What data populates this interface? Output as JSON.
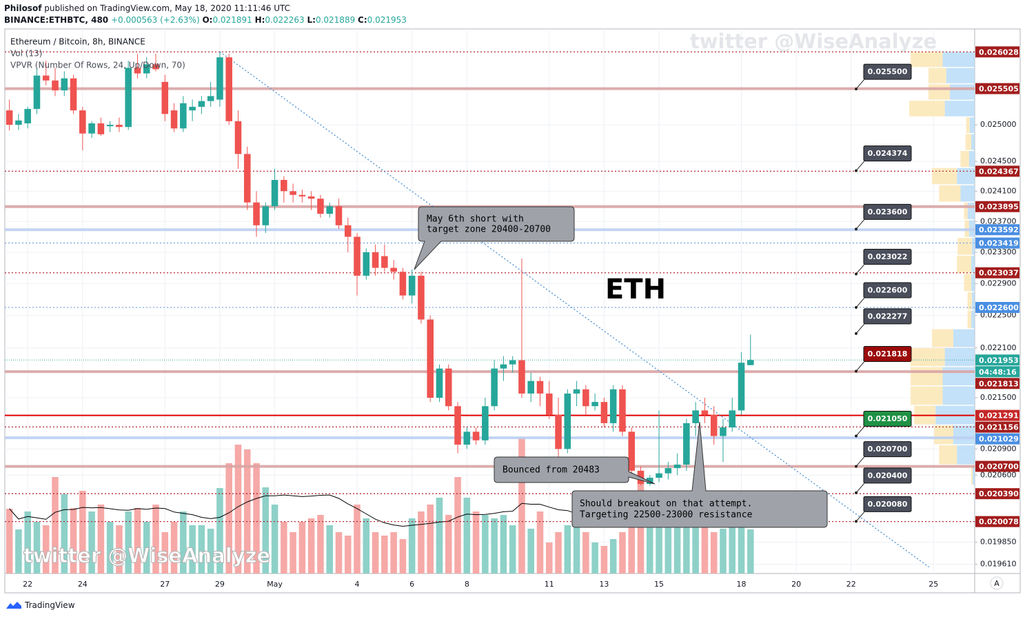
{
  "header": {
    "publisher": "Philosof",
    "published": "published on TradingView.com, May 18, 2020 11:11:46 UTC",
    "symbol": "BINANCE:ETHBTC, 480",
    "change": "+0.000563 (+2.63%)",
    "ohlc": [
      {
        "key": "O:",
        "value": "0.021891"
      },
      {
        "key": "H:",
        "value": "0.022263"
      },
      {
        "key": "L:",
        "value": "0.021889"
      },
      {
        "key": "C:",
        "value": "0.021953"
      }
    ]
  },
  "footer": "TradingView",
  "chart_data": {
    "type": "candlestick",
    "title": "Ethereum / Bitcoin, 8h, BINANCE",
    "indicators": [
      "Vol (13)",
      "VPVR (Number Of Rows, 24, Up/Down, 70)"
    ],
    "volume_ma_length": 13,
    "watermark": "twitter @WiseAnalyze",
    "label": "ETH",
    "scale_button": "A",
    "log": true,
    "grid": true,
    "up_color": "#26a69a",
    "down_color": "#ef5350",
    "volume_up_color": "#8ed1c8",
    "volume_down_color": "#f6a9a7",
    "vpvr_up_color": "#b9dcf7",
    "vpvr_down_color": "#fbe6b4",
    "xlim": [
      -0.5,
      105.5
    ],
    "xticks": [
      {
        "value": 2,
        "label": "22"
      },
      {
        "value": 8,
        "label": "24"
      },
      {
        "value": 17,
        "label": "27"
      },
      {
        "value": 23,
        "label": "29"
      },
      {
        "value": 29,
        "label": "May"
      },
      {
        "value": 38,
        "label": "4"
      },
      {
        "value": 44,
        "label": "6"
      },
      {
        "value": 50,
        "label": "8"
      },
      {
        "value": 59,
        "label": "11"
      },
      {
        "value": 65,
        "label": "13"
      },
      {
        "value": 71,
        "label": "15"
      },
      {
        "value": 80,
        "label": "18"
      },
      {
        "value": 86,
        "label": "20"
      },
      {
        "value": 92,
        "label": "22"
      },
      {
        "value": 101,
        "label": "25"
      }
    ],
    "ylim": [
      0.01951,
      0.02636
    ],
    "yticks": [
      {
        "value": 0.025,
        "label": "0.025000"
      },
      {
        "value": 0.0245,
        "label": "0.024500"
      },
      {
        "value": 0.0241,
        "label": "0.024100"
      },
      {
        "value": 0.0237,
        "label": "0.023700"
      },
      {
        "value": 0.0233,
        "label": "0.023300"
      },
      {
        "value": 0.0229,
        "label": "0.022900"
      },
      {
        "value": 0.0225,
        "label": "0.022500"
      },
      {
        "value": 0.0221,
        "label": "0.022100"
      },
      {
        "value": 0.0215,
        "label": "0.021500"
      },
      {
        "value": 0.0209,
        "label": "0.020900"
      },
      {
        "value": 0.0206,
        "label": "0.020600"
      },
      {
        "value": 0.01985,
        "label": "0.019850"
      },
      {
        "value": 0.01961,
        "label": "0.019610"
      }
    ],
    "ohlc": [
      [
        0.0252,
        0.02535,
        0.02492,
        0.025
      ],
      [
        0.025,
        0.02515,
        0.02493,
        0.02506
      ],
      [
        0.02502,
        0.02525,
        0.02495,
        0.02522
      ],
      [
        0.02522,
        0.0258,
        0.02515,
        0.02569
      ],
      [
        0.02569,
        0.0259,
        0.02555,
        0.02562
      ],
      [
        0.02562,
        0.0258,
        0.0254,
        0.02548
      ],
      [
        0.02548,
        0.02575,
        0.0254,
        0.02565
      ],
      [
        0.02565,
        0.0257,
        0.02515,
        0.0252
      ],
      [
        0.0252,
        0.02525,
        0.02465,
        0.02488
      ],
      [
        0.02488,
        0.02505,
        0.02482,
        0.02502
      ],
      [
        0.02502,
        0.0251,
        0.02485,
        0.02487
      ],
      [
        0.02498,
        0.02505,
        0.0249,
        0.025
      ],
      [
        0.025,
        0.0251,
        0.0249,
        0.02497
      ],
      [
        0.02497,
        0.0259,
        0.02493,
        0.0258
      ],
      [
        0.0258,
        0.026,
        0.02565,
        0.02572
      ],
      [
        0.02572,
        0.02595,
        0.02565,
        0.02585
      ],
      [
        0.02585,
        0.026,
        0.02575,
        0.02578
      ],
      [
        0.0256,
        0.0257,
        0.02505,
        0.02515
      ],
      [
        0.0252,
        0.0253,
        0.0249,
        0.02495
      ],
      [
        0.02495,
        0.0254,
        0.0249,
        0.0253
      ],
      [
        0.0252,
        0.02535,
        0.02505,
        0.02525
      ],
      [
        0.02525,
        0.0254,
        0.02515,
        0.02533
      ],
      [
        0.02533,
        0.0256,
        0.02525,
        0.0254
      ],
      [
        0.02535,
        0.026028,
        0.02525,
        0.02595
      ],
      [
        0.02595,
        0.026,
        0.025,
        0.02505
      ],
      [
        0.02505,
        0.0252,
        0.0244,
        0.0246
      ],
      [
        0.0246,
        0.0247,
        0.02385,
        0.02395
      ],
      [
        0.02395,
        0.0241,
        0.0235,
        0.02365
      ],
      [
        0.02365,
        0.02395,
        0.02355,
        0.0239
      ],
      [
        0.0239,
        0.0244,
        0.02385,
        0.02425
      ],
      [
        0.02425,
        0.0243,
        0.02395,
        0.0241
      ],
      [
        0.0241,
        0.0242,
        0.02395,
        0.02405
      ],
      [
        0.02405,
        0.02412,
        0.02395,
        0.02403
      ],
      [
        0.02403,
        0.0241,
        0.02385,
        0.024
      ],
      [
        0.024,
        0.02405,
        0.02375,
        0.0238
      ],
      [
        0.0238,
        0.02395,
        0.02375,
        0.0239
      ],
      [
        0.0239,
        0.024,
        0.0236,
        0.02365
      ],
      [
        0.02365,
        0.02375,
        0.0233,
        0.0235
      ],
      [
        0.0235,
        0.02355,
        0.02275,
        0.023
      ],
      [
        0.023,
        0.02335,
        0.02295,
        0.0233
      ],
      [
        0.0233,
        0.0234,
        0.023,
        0.0231
      ],
      [
        0.02325,
        0.0234,
        0.02305,
        0.0231
      ],
      [
        0.0231,
        0.0232,
        0.02295,
        0.02305
      ],
      [
        0.02305,
        0.0231,
        0.0227,
        0.02275
      ],
      [
        0.02275,
        0.02308,
        0.02265,
        0.023
      ],
      [
        0.023,
        0.02305,
        0.0224,
        0.02245
      ],
      [
        0.02245,
        0.0225,
        0.02145,
        0.0215
      ],
      [
        0.0215,
        0.0219,
        0.02145,
        0.02185
      ],
      [
        0.02185,
        0.0219,
        0.02135,
        0.0214
      ],
      [
        0.0214,
        0.02145,
        0.02085,
        0.02095
      ],
      [
        0.02095,
        0.02115,
        0.0209,
        0.0211
      ],
      [
        0.0211,
        0.02115,
        0.02095,
        0.021
      ],
      [
        0.021,
        0.0215,
        0.02095,
        0.0214
      ],
      [
        0.0214,
        0.02195,
        0.02135,
        0.02185
      ],
      [
        0.02185,
        0.022,
        0.0217,
        0.0219
      ],
      [
        0.0219,
        0.022,
        0.0218,
        0.02195
      ],
      [
        0.02195,
        0.02322,
        0.0215,
        0.02155
      ],
      [
        0.02155,
        0.0218,
        0.02145,
        0.0217
      ],
      [
        0.0217,
        0.02175,
        0.0214,
        0.02155
      ],
      [
        0.02155,
        0.0217,
        0.02125,
        0.0213
      ],
      [
        0.0213,
        0.0215,
        0.0208,
        0.0209
      ],
      [
        0.0209,
        0.0216,
        0.02085,
        0.02155
      ],
      [
        0.02155,
        0.0217,
        0.0214,
        0.0216
      ],
      [
        0.0216,
        0.02165,
        0.0213,
        0.0214
      ],
      [
        0.0214,
        0.02155,
        0.02135,
        0.02145
      ],
      [
        0.02145,
        0.0215,
        0.02115,
        0.0212
      ],
      [
        0.0212,
        0.02165,
        0.0211,
        0.0216
      ],
      [
        0.0216,
        0.02165,
        0.02105,
        0.0211
      ],
      [
        0.0211,
        0.02115,
        0.0206,
        0.02065
      ],
      [
        0.02065,
        0.0207,
        0.020483,
        0.0205
      ],
      [
        0.0205,
        0.0206,
        0.02048,
        0.02057
      ],
      [
        0.02057,
        0.02135,
        0.02052,
        0.02062
      ],
      [
        0.02062,
        0.02075,
        0.02055,
        0.02068
      ],
      [
        0.02068,
        0.02085,
        0.0206,
        0.02072
      ],
      [
        0.02072,
        0.02125,
        0.02065,
        0.0212
      ],
      [
        0.0212,
        0.02145,
        0.02105,
        0.02135
      ],
      [
        0.02135,
        0.0215,
        0.0212,
        0.0213
      ],
      [
        0.0213,
        0.0214,
        0.02095,
        0.02105
      ],
      [
        0.02105,
        0.02125,
        0.02075,
        0.02115
      ],
      [
        0.02115,
        0.0215,
        0.0211,
        0.02135
      ],
      [
        0.02135,
        0.02205,
        0.0213,
        0.02192
      ],
      [
        0.021891,
        0.022263,
        0.021889,
        0.021953
      ]
    ],
    "volume": [
      94,
      64,
      90,
      75,
      70,
      140,
      115,
      95,
      120,
      90,
      100,
      75,
      70,
      90,
      95,
      75,
      100,
      60,
      75,
      90,
      70,
      70,
      65,
      124,
      160,
      187,
      180,
      160,
      125,
      100,
      75,
      60,
      75,
      80,
      85,
      70,
      60,
      55,
      100,
      80,
      60,
      55,
      60,
      50,
      80,
      90,
      100,
      110,
      85,
      140,
      110,
      90,
      85,
      80,
      85,
      70,
      197,
      65,
      90,
      45,
      60,
      70,
      80,
      60,
      45,
      40,
      50,
      60,
      90,
      130,
      100,
      80,
      75,
      70,
      90,
      100,
      80,
      60,
      65,
      70,
      110,
      64
    ],
    "vpvr": {
      "up": [
        3,
        25,
        30,
        55,
        45,
        45,
        42,
        30,
        5,
        4,
        5,
        5,
        4,
        8,
        10,
        20,
        25,
        8,
        5,
        7,
        42,
        35,
        40,
        45
      ],
      "down": [
        2,
        25,
        27,
        30,
        45,
        45,
        48,
        30,
        5,
        6,
        10,
        20,
        20,
        6,
        5,
        30,
        35,
        12,
        8,
        5,
        50,
        30,
        25,
        45
      ]
    },
    "trendline": {
      "x": [
        23,
        100.5
      ],
      "values": [
        0.02603,
        0.01958
      ],
      "color": "#5b9bd5"
    },
    "levels": [
      {
        "value": 0.026028,
        "label": "0.026028",
        "style": "dotted",
        "color": "#b22833",
        "label_color": "#a31d1d"
      },
      {
        "value": 0.025505,
        "label": "0.025505",
        "style": "band",
        "color": "#d9a5a5",
        "label_color": "#a31d1d"
      },
      {
        "value": 0.024367,
        "label": "0.024367",
        "style": "dotted",
        "color": "#b22833",
        "label_color": "#a31d1d"
      },
      {
        "value": 0.023895,
        "label": "0.023895",
        "style": "band",
        "color": "#d9a5a5",
        "label_color": "#a31d1d"
      },
      {
        "value": 0.023592,
        "label": "0.023592",
        "style": "band",
        "color": "#bcd0f2",
        "label_color": "#4a8fe2"
      },
      {
        "value": 0.023419,
        "label": "0.023419",
        "style": "dotted",
        "color": "#7ba7e0",
        "label_color": "#4a8fe2"
      },
      {
        "value": 0.023037,
        "label": "0.023037",
        "style": "dotted",
        "color": "#b22833",
        "label_color": "#a31d1d"
      },
      {
        "value": 0.0226,
        "label": "0.022600",
        "style": "dotted",
        "color": "#7ba7e0",
        "label_color": "#4a8fe2"
      },
      {
        "value": 0.021813,
        "label": "0.021813",
        "style": "band",
        "color": "#d9a5a5",
        "label_color": "#a31d1d"
      },
      {
        "value": 0.021291,
        "label": "0.021291",
        "style": "solid",
        "color": "#e00000",
        "label_color": "#c62828"
      },
      {
        "value": 0.021156,
        "label": "0.021156",
        "style": "dotted",
        "color": "#b22833",
        "label_color": "#a31d1d"
      },
      {
        "value": 0.021029,
        "label": "0.021029",
        "style": "band",
        "color": "#bcd0f2",
        "label_color": "#4a8fe2"
      },
      {
        "value": 0.0207,
        "label": "0.020700",
        "style": "band",
        "color": "#d9a5a5",
        "label_color": "#a31d1d"
      },
      {
        "value": 0.02039,
        "label": "0.020390",
        "style": "dotted",
        "color": "#b22833",
        "label_color": "#a31d1d"
      },
      {
        "value": 0.020078,
        "label": "0.020078",
        "style": "dotted",
        "color": "#b22833",
        "label_color": "#a31d1d"
      }
    ],
    "current": {
      "value": 0.021953,
      "label": "0.021953",
      "countdown": "04:48:16",
      "color": "#26a69a"
    },
    "notes": [
      {
        "value": 0.0255,
        "label": "0.025500",
        "color": "#4b4f5c"
      },
      {
        "value": 0.024374,
        "label": "0.024374",
        "color": "#4b4f5c"
      },
      {
        "value": 0.0236,
        "label": "0.023600",
        "color": "#4b4f5c"
      },
      {
        "value": 0.023022,
        "label": "0.023022",
        "color": "#4b4f5c"
      },
      {
        "value": 0.0226,
        "label": "0.022600",
        "color": "#4b4f5c"
      },
      {
        "value": 0.022277,
        "label": "0.022277",
        "color": "#4b4f5c"
      },
      {
        "value": 0.021818,
        "label": "0.021818",
        "color": "#9b0b0b"
      },
      {
        "value": 0.02105,
        "label": "0.021050",
        "color": "#1e9144"
      },
      {
        "value": 0.0207,
        "label": "0.020700",
        "color": "#4b4f5c"
      },
      {
        "value": 0.0204,
        "label": "0.020400",
        "color": "#4b4f5c"
      },
      {
        "value": 0.02008,
        "label": "0.020080",
        "color": "#4b4f5c"
      }
    ],
    "annotations": [
      {
        "lines": [
          "May 6th short with",
          "target zone 20400-20700"
        ]
      },
      {
        "lines": [
          "Bounced from 20483"
        ]
      },
      {
        "lines": [
          "Should breakout on that attempt.",
          "Targeting 22500-23000 resistance"
        ]
      }
    ]
  }
}
